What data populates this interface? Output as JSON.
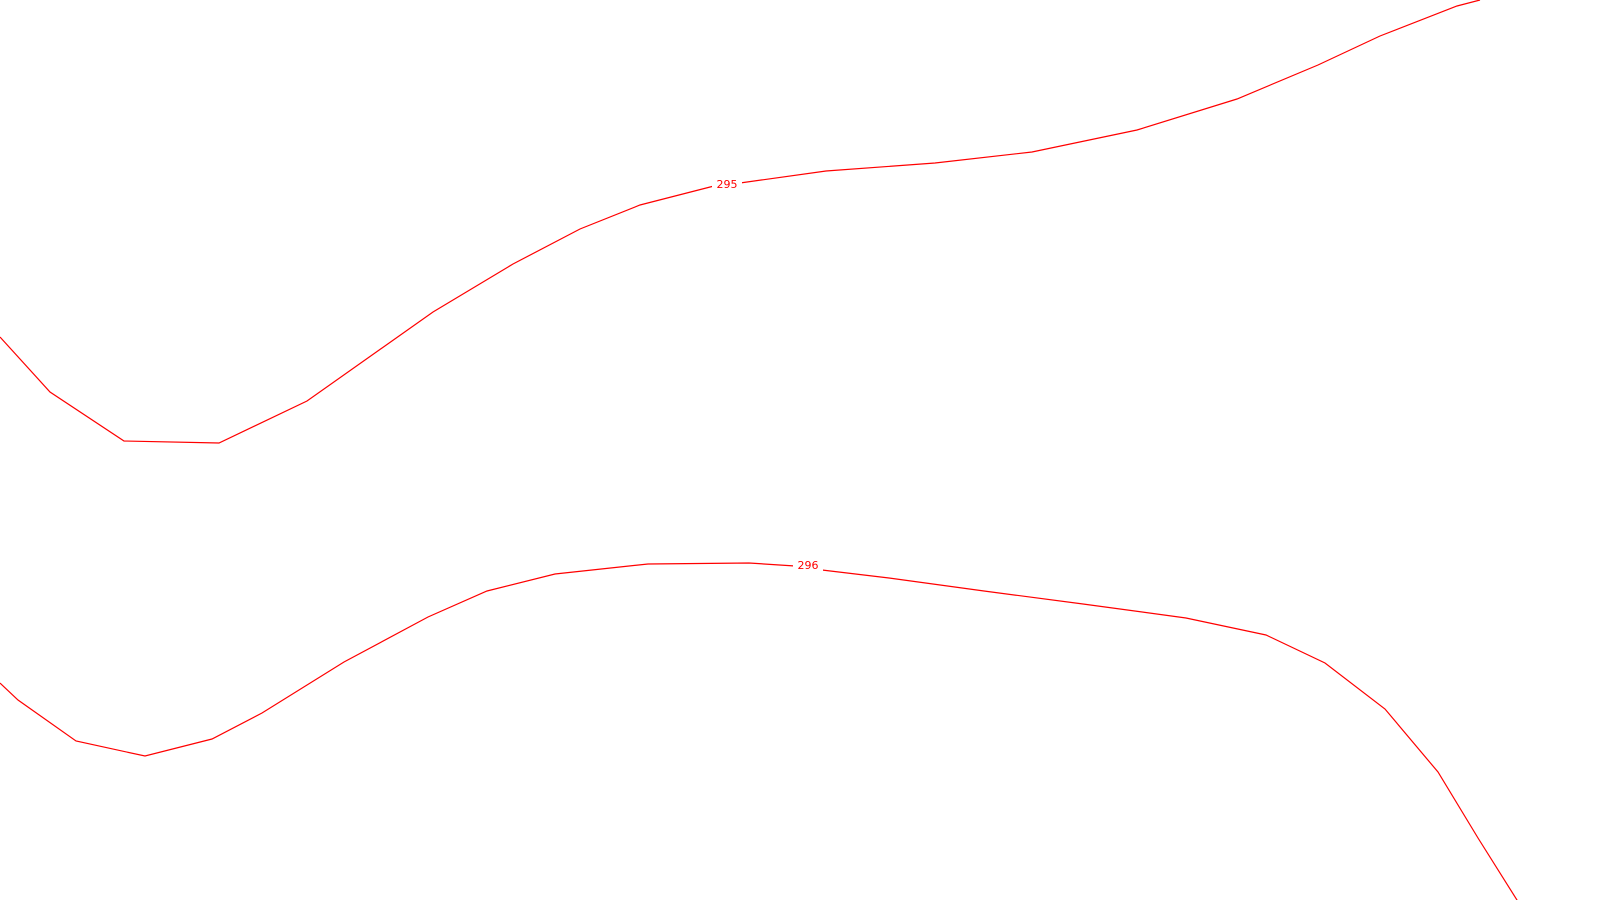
{
  "map": {
    "line_color": "#ff0000",
    "background": "#ffffff",
    "contours": [
      {
        "elevation_label": "295"
      },
      {
        "elevation_label": "296"
      }
    ]
  }
}
